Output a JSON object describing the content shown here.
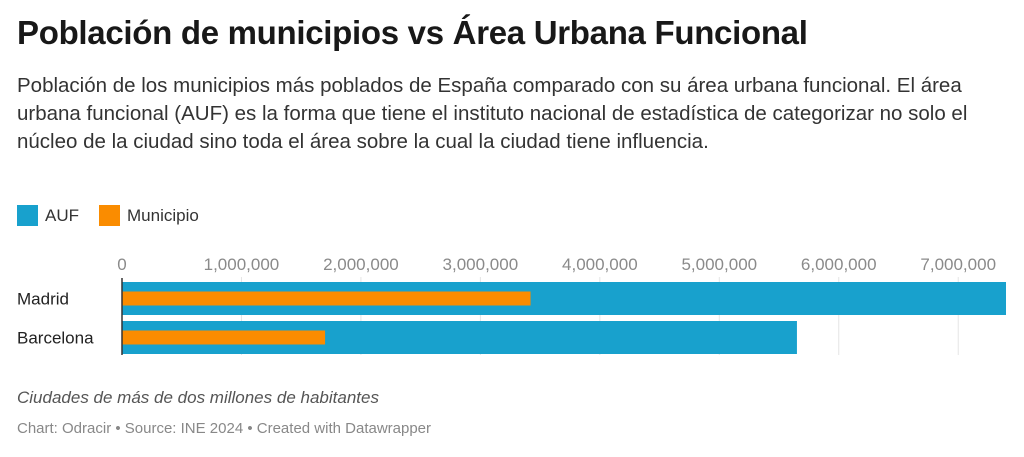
{
  "title": "Población de municipios vs Área Urbana Funcional",
  "subtitle": "Población de los municipios más poblados de España comparado con su área urbana funcional. El área urbana funcional (AUF) es la forma que tiene el instituto nacional de estadística de categorizar no solo el núcleo de la ciudad sino toda el área sobre la cual la ciudad tiene influencia.",
  "legend": {
    "auf": {
      "label": "AUF",
      "color": "#18a1cd"
    },
    "municipio": {
      "label": "Municipio",
      "color": "#fa8c00"
    }
  },
  "note": "Ciudades de más de dos millones de habitantes",
  "credit": "Chart: Odracir • Source: INE 2024 • Created with Datawrapper",
  "chart_data": {
    "type": "bar",
    "orientation": "horizontal",
    "categories": [
      "Madrid",
      "Barcelona"
    ],
    "series": [
      {
        "name": "AUF",
        "color": "#18a1cd",
        "values": [
          7400000,
          5650000
        ]
      },
      {
        "name": "Municipio",
        "color": "#fa8c00",
        "values": [
          3420000,
          1700000
        ]
      }
    ],
    "xlim": [
      0,
      7400000
    ],
    "xticks": [
      0,
      1000000,
      2000000,
      3000000,
      4000000,
      5000000,
      6000000,
      7000000
    ],
    "xtick_labels": [
      "0",
      "1,000,000",
      "2,000,000",
      "3,000,000",
      "4,000,000",
      "5,000,000",
      "6,000,000",
      "7,000,000"
    ],
    "grid": true,
    "legend_position": "top-left"
  }
}
